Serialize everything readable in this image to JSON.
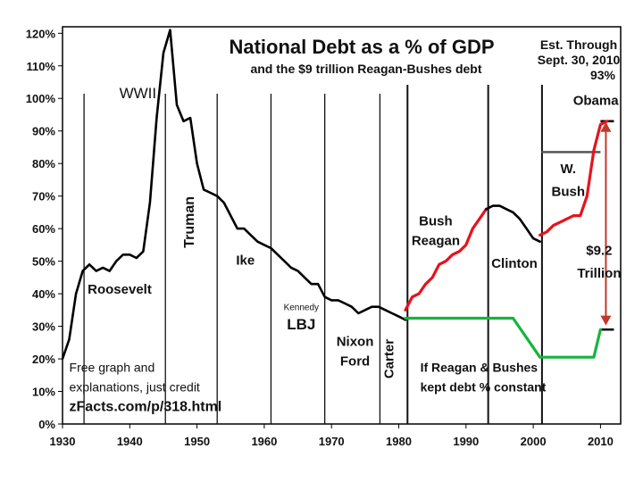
{
  "chart_data": {
    "type": "line",
    "title": "National Debt as a % of GDP",
    "subtitle": "and the $9 trillion Reagan-Bushes debt",
    "estimate_note": [
      "Est. Through",
      "Sept. 30, 2010",
      "93%"
    ],
    "xlabel": "",
    "ylabel": "",
    "xlim": [
      1930,
      2013
    ],
    "ylim": [
      0,
      122
    ],
    "x_ticks": [
      1930,
      1940,
      1950,
      1960,
      1970,
      1980,
      1990,
      2000,
      2010
    ],
    "y_ticks": [
      "0%",
      "10%",
      "20%",
      "30%",
      "40%",
      "50%",
      "60%",
      "70%",
      "80%",
      "90%",
      "100%",
      "110%",
      "120%"
    ],
    "y_tick_values": [
      0,
      10,
      20,
      30,
      40,
      50,
      60,
      70,
      80,
      90,
      100,
      110,
      120
    ],
    "presidency_dividers": [
      1933.2,
      1945.3,
      1953,
      1961,
      1969,
      1977.2,
      1981.3,
      1993.3,
      2001.3
    ],
    "era_labels": [
      {
        "text": "WWII",
        "x": 1941.2,
        "y": 100
      },
      {
        "text": "Roosevelt",
        "x": 1938.5,
        "y": 40
      },
      {
        "text": "Truman",
        "x": 1949.5,
        "y": 62
      },
      {
        "text": "Ike",
        "x": 1957.2,
        "y": 49
      },
      {
        "text": "Kennedy",
        "x": 1965.5,
        "y": 35
      },
      {
        "text": "LBJ",
        "x": 1965.5,
        "y": 29
      },
      {
        "text": "Nixon",
        "x": 1973.5,
        "y": 24
      },
      {
        "text": "Ford",
        "x": 1973.5,
        "y": 18
      },
      {
        "text": "Carter",
        "x": 1979.2,
        "y": 20
      },
      {
        "text": "Bush",
        "x": 1985.5,
        "y": 61
      },
      {
        "text": "Reagan",
        "x": 1985.5,
        "y": 55
      },
      {
        "text": "Clinton",
        "x": 1997.2,
        "y": 48
      },
      {
        "text": "W.",
        "x": 2005.2,
        "y": 77
      },
      {
        "text": "Bush",
        "x": 2005.2,
        "y": 70
      },
      {
        "text": "Obama",
        "x": 2009.3,
        "y": 98
      },
      {
        "text": "$9.2",
        "x": 2009.8,
        "y": 52
      },
      {
        "text": "Trillion",
        "x": 2009.8,
        "y": 45
      }
    ],
    "bottom_notes": [
      {
        "text": "Free graph and",
        "x": 1931,
        "y": 16
      },
      {
        "text": "explanations, just  credit",
        "x": 1931,
        "y": 10
      },
      {
        "text": "zFacts.com/p/318.html",
        "x": 1931,
        "y": 4
      },
      {
        "text": "If Reagan & Bushes",
        "x": 1983.2,
        "y": 16
      },
      {
        "text": "kept debt % constant",
        "x": 1983.2,
        "y": 10
      }
    ],
    "series": [
      {
        "name": "Actual debt % of GDP",
        "color": "#000000",
        "x": [
          1930,
          1931,
          1932,
          1933,
          1934,
          1935,
          1936,
          1937,
          1938,
          1939,
          1940,
          1941,
          1942,
          1943,
          1944,
          1945,
          1946,
          1947,
          1948,
          1949,
          1950,
          1951,
          1952,
          1953,
          1954,
          1955,
          1956,
          1957,
          1958,
          1959,
          1960,
          1961,
          1962,
          1963,
          1964,
          1965,
          1966,
          1967,
          1968,
          1969,
          1970,
          1971,
          1972,
          1973,
          1974,
          1975,
          1976,
          1977,
          1978,
          1979,
          1980,
          1981
        ],
        "values": [
          20,
          26,
          40,
          47,
          49,
          47,
          48,
          47,
          50,
          52,
          52,
          51,
          53,
          68,
          94,
          114,
          121,
          98,
          93,
          94,
          80,
          72,
          71,
          70,
          68,
          64,
          60,
          60,
          58,
          56,
          55,
          54,
          52,
          50,
          48,
          47,
          45,
          43,
          43,
          39,
          38,
          38,
          37,
          36,
          34,
          35,
          36,
          36,
          35,
          34,
          33,
          32
        ]
      },
      {
        "name": "Reagan-Bushes debt",
        "color": "#e8121b",
        "x": [
          1981,
          1982,
          1983,
          1984,
          1985,
          1986,
          1987,
          1988,
          1989,
          1990,
          1991,
          1992,
          1993
        ],
        "values": [
          35,
          39,
          40,
          43,
          45,
          49,
          50,
          52,
          53,
          55,
          60,
          63,
          66
        ]
      },
      {
        "name": "Clinton",
        "color": "#000000",
        "x": [
          1993,
          1994,
          1995,
          1996,
          1997,
          1998,
          1999,
          2000,
          2001
        ],
        "values": [
          66,
          67,
          67,
          66,
          65,
          63,
          60,
          57,
          56
        ]
      },
      {
        "name": "W. Bush & Obama",
        "color": "#e8121b",
        "x": [
          2001,
          2002,
          2003,
          2004,
          2005,
          2006,
          2007,
          2008,
          2009,
          2010,
          2011
        ],
        "values": [
          58,
          59,
          61,
          62,
          63,
          64,
          64,
          70,
          84,
          92,
          93
        ]
      },
      {
        "name": "If Reagan & Bushes kept debt % constant",
        "color": "#16b43c",
        "x": [
          1981,
          1993,
          1997,
          2001,
          2009,
          2010
        ],
        "values": [
          32.5,
          32.5,
          32.5,
          20.5,
          20.5,
          29
        ]
      }
    ],
    "reference_lines": [
      {
        "name": "W. Bush start level",
        "x": [
          2001.2,
          2010
        ],
        "y": 83.5,
        "color": "#555555"
      },
      {
        "name": "93% cap",
        "x": [
          2010,
          2012
        ],
        "y": 93,
        "color": "#000000"
      },
      {
        "name": "29% cap",
        "x": [
          2010,
          2012
        ],
        "y": 29,
        "color": "#000000"
      }
    ],
    "debt_gap_arrow": {
      "x": 2010.8,
      "from": 30,
      "to": 93,
      "color": "#c0392b"
    }
  }
}
